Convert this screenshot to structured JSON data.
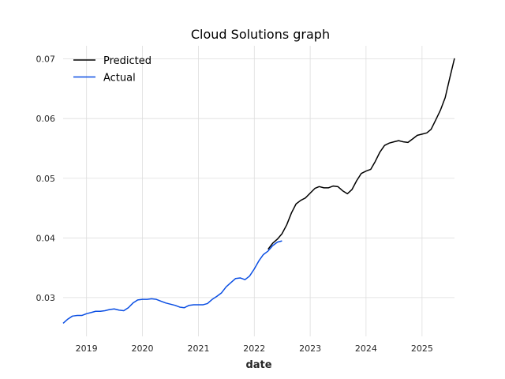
{
  "chart_data": {
    "type": "line",
    "title": "Cloud Solutions graph",
    "xlabel": "date",
    "ylabel": "",
    "grid": true,
    "legend_position": "top-left",
    "xlim": [
      "2018-08-01",
      "2025-08-01"
    ],
    "ylim": [
      0.0235,
      0.0722
    ],
    "x_ticks": [
      {
        "date": "2019-01-01",
        "label": "2019"
      },
      {
        "date": "2020-01-01",
        "label": "2020"
      },
      {
        "date": "2021-01-01",
        "label": "2021"
      },
      {
        "date": "2022-01-01",
        "label": "2022"
      },
      {
        "date": "2023-01-01",
        "label": "2023"
      },
      {
        "date": "2024-01-01",
        "label": "2024"
      },
      {
        "date": "2025-01-01",
        "label": "2025"
      }
    ],
    "y_ticks": [
      {
        "value": 0.03,
        "label": "0.03"
      },
      {
        "value": 0.04,
        "label": "0.04"
      },
      {
        "value": 0.05,
        "label": "0.05"
      },
      {
        "value": 0.06,
        "label": "0.06"
      },
      {
        "value": 0.07,
        "label": "0.07"
      }
    ],
    "series": [
      {
        "name": "Predicted",
        "color": "#000000",
        "points": [
          [
            "2022-04-01",
            0.0381
          ],
          [
            "2022-05-01",
            0.0391
          ],
          [
            "2022-06-01",
            0.0398
          ],
          [
            "2022-07-01",
            0.0407
          ],
          [
            "2022-08-01",
            0.0422
          ],
          [
            "2022-09-01",
            0.0442
          ],
          [
            "2022-10-01",
            0.0457
          ],
          [
            "2022-11-01",
            0.0463
          ],
          [
            "2022-12-01",
            0.0467
          ],
          [
            "2023-01-01",
            0.0475
          ],
          [
            "2023-02-01",
            0.0483
          ],
          [
            "2023-03-01",
            0.0486
          ],
          [
            "2023-04-01",
            0.0484
          ],
          [
            "2023-05-01",
            0.0484
          ],
          [
            "2023-06-01",
            0.0487
          ],
          [
            "2023-07-01",
            0.0486
          ],
          [
            "2023-08-01",
            0.0479
          ],
          [
            "2023-09-01",
            0.0474
          ],
          [
            "2023-10-01",
            0.0481
          ],
          [
            "2023-11-01",
            0.0496
          ],
          [
            "2023-12-01",
            0.0508
          ],
          [
            "2024-01-01",
            0.0512
          ],
          [
            "2024-02-01",
            0.0515
          ],
          [
            "2024-03-01",
            0.0528
          ],
          [
            "2024-04-01",
            0.0544
          ],
          [
            "2024-05-01",
            0.0555
          ],
          [
            "2024-06-01",
            0.0559
          ],
          [
            "2024-07-01",
            0.0561
          ],
          [
            "2024-08-01",
            0.0563
          ],
          [
            "2024-09-01",
            0.0561
          ],
          [
            "2024-10-01",
            0.056
          ],
          [
            "2024-11-01",
            0.0566
          ],
          [
            "2024-12-01",
            0.0572
          ],
          [
            "2025-01-01",
            0.0574
          ],
          [
            "2025-02-01",
            0.0576
          ],
          [
            "2025-03-01",
            0.0582
          ],
          [
            "2025-04-01",
            0.0598
          ],
          [
            "2025-05-01",
            0.0614
          ],
          [
            "2025-06-01",
            0.0635
          ],
          [
            "2025-07-01",
            0.0668
          ],
          [
            "2025-08-01",
            0.0701
          ]
        ]
      },
      {
        "name": "Actual",
        "color": "#0a4ee3",
        "points": [
          [
            "2018-08-01",
            0.0257
          ],
          [
            "2018-09-01",
            0.0264
          ],
          [
            "2018-10-01",
            0.0269
          ],
          [
            "2018-11-01",
            0.027
          ],
          [
            "2018-12-01",
            0.027
          ],
          [
            "2019-01-01",
            0.0273
          ],
          [
            "2019-02-01",
            0.0275
          ],
          [
            "2019-03-01",
            0.0277
          ],
          [
            "2019-04-01",
            0.0277
          ],
          [
            "2019-05-01",
            0.0278
          ],
          [
            "2019-06-01",
            0.028
          ],
          [
            "2019-07-01",
            0.0281
          ],
          [
            "2019-08-01",
            0.0279
          ],
          [
            "2019-09-01",
            0.0278
          ],
          [
            "2019-10-01",
            0.0283
          ],
          [
            "2019-11-01",
            0.0291
          ],
          [
            "2019-12-01",
            0.0296
          ],
          [
            "2020-01-01",
            0.0297
          ],
          [
            "2020-02-01",
            0.0297
          ],
          [
            "2020-03-01",
            0.0298
          ],
          [
            "2020-04-01",
            0.0297
          ],
          [
            "2020-05-01",
            0.0294
          ],
          [
            "2020-06-01",
            0.0291
          ],
          [
            "2020-07-01",
            0.0289
          ],
          [
            "2020-08-01",
            0.0287
          ],
          [
            "2020-09-01",
            0.0284
          ],
          [
            "2020-10-01",
            0.0283
          ],
          [
            "2020-11-01",
            0.0287
          ],
          [
            "2020-12-01",
            0.0288
          ],
          [
            "2021-01-01",
            0.0288
          ],
          [
            "2021-02-01",
            0.0288
          ],
          [
            "2021-03-01",
            0.029
          ],
          [
            "2021-04-01",
            0.0297
          ],
          [
            "2021-05-01",
            0.0302
          ],
          [
            "2021-06-01",
            0.0308
          ],
          [
            "2021-07-01",
            0.0318
          ],
          [
            "2021-08-01",
            0.0325
          ],
          [
            "2021-09-01",
            0.0332
          ],
          [
            "2021-10-01",
            0.0333
          ],
          [
            "2021-11-01",
            0.033
          ],
          [
            "2021-12-01",
            0.0336
          ],
          [
            "2022-01-01",
            0.0348
          ],
          [
            "2022-02-01",
            0.0362
          ],
          [
            "2022-03-01",
            0.0372
          ],
          [
            "2022-04-01",
            0.0378
          ],
          [
            "2022-05-01",
            0.0387
          ],
          [
            "2022-06-01",
            0.0393
          ],
          [
            "2022-07-01",
            0.0395
          ]
        ]
      }
    ]
  }
}
